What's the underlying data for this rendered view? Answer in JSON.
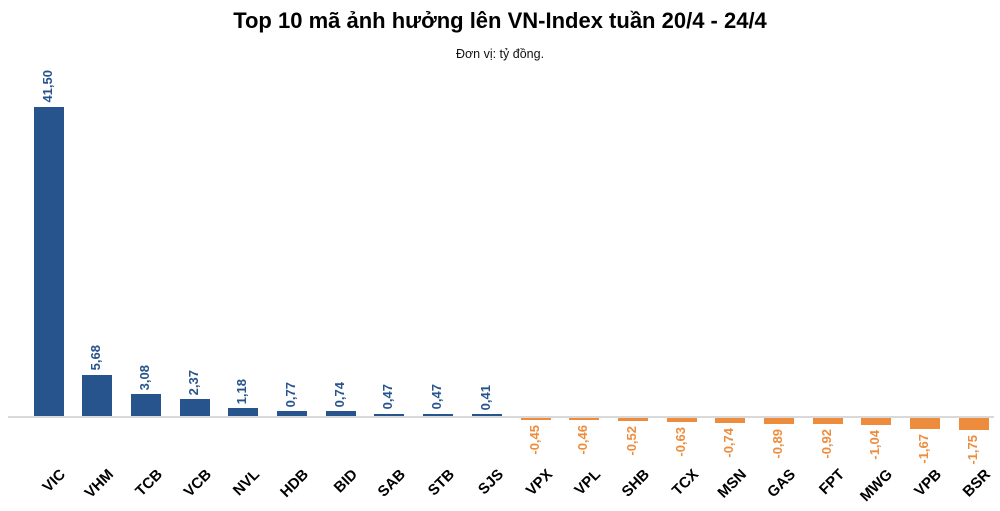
{
  "chart": {
    "title": "Top 10 mã ảnh hưởng lên VN-Index tuần 20/4 - 24/4",
    "subtitle": "Đơn vị: tỷ đồng."
  },
  "chart_data": {
    "type": "bar",
    "title": "Top 10 mã ảnh hưởng lên VN-Index tuần 20/4 - 24/4",
    "subtitle": "Đơn vị: tỷ đồng.",
    "xlabel": "",
    "ylabel": "",
    "unit": "tỷ đồng",
    "categories": [
      "VIC",
      "VHM",
      "TCB",
      "VCB",
      "NVL",
      "HDB",
      "BID",
      "SAB",
      "STB",
      "SJS",
      "VPX",
      "VPL",
      "SHB",
      "TCX",
      "MSN",
      "GAS",
      "FPT",
      "MWG",
      "VPB",
      "BSR"
    ],
    "values": [
      41.5,
      5.68,
      3.08,
      2.37,
      1.18,
      0.77,
      0.74,
      0.47,
      0.47,
      0.41,
      -0.45,
      -0.46,
      -0.52,
      -0.63,
      -0.74,
      -0.89,
      -0.92,
      -1.04,
      -1.67,
      -1.75
    ],
    "value_labels": [
      "41,50",
      "5,68",
      "3,08",
      "2,37",
      "1,18",
      "0,77",
      "0,74",
      "0,47",
      "0,47",
      "0,41",
      "-0,45",
      "-0,46",
      "-0,52",
      "-0,63",
      "-0,74",
      "-0,89",
      "-0,92",
      "-1,04",
      "-1,67",
      "-1,75"
    ],
    "positive_color": "#27548C",
    "negative_color": "#ED8C3C",
    "baseline_color": "#D9D9D9",
    "ylim": [
      -2,
      42
    ],
    "grid": false,
    "legend": false,
    "x_tick_rotation": 45,
    "data_label_rotation": 90
  }
}
